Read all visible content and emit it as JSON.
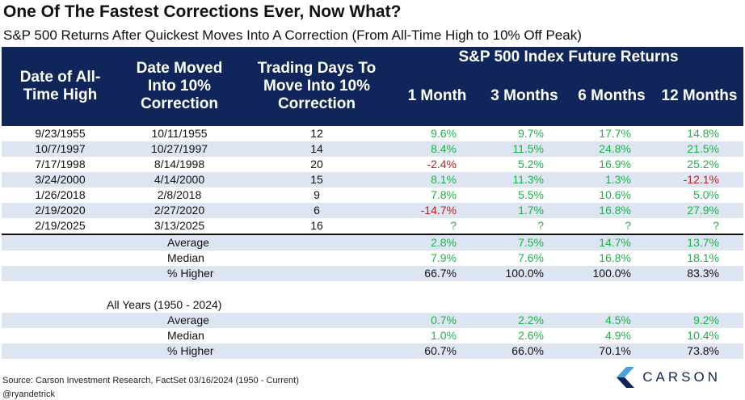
{
  "title": "One Of The Fastest Corrections Ever, Now What?",
  "subtitle": "S&P 500 Returns After Quickest Moves Into A Correction (From All-Time High to 10% Off Peak)",
  "header": {
    "col1": "Date of All-Time High",
    "col2": "Date Moved Into 10% Correction",
    "col3": "Trading Days To Move Into 10% Correction",
    "group": "S&P 500 Index Future Returns",
    "m1": "1 Month",
    "m3": "3 Months",
    "m6": "6 Months",
    "m12": "12 Months"
  },
  "rows": [
    {
      "ath": "9/23/1955",
      "corr": "10/11/1955",
      "days": "12",
      "m1": "9.6%",
      "m3": "9.7%",
      "m6": "17.7%",
      "m12": "14.8%"
    },
    {
      "ath": "10/7/1997",
      "corr": "10/27/1997",
      "days": "14",
      "m1": "8.4%",
      "m3": "11.5%",
      "m6": "24.8%",
      "m12": "21.5%"
    },
    {
      "ath": "7/17/1998",
      "corr": "8/14/1998",
      "days": "20",
      "m1": "-2.4%",
      "m3": "5.2%",
      "m6": "16.9%",
      "m12": "25.2%"
    },
    {
      "ath": "3/24/2000",
      "corr": "4/14/2000",
      "days": "15",
      "m1": "8.1%",
      "m3": "11.3%",
      "m6": "1.3%",
      "m12": "-12.1%"
    },
    {
      "ath": "1/26/2018",
      "corr": "2/8/2018",
      "days": "9",
      "m1": "7.8%",
      "m3": "5.5%",
      "m6": "10.6%",
      "m12": "5.0%"
    },
    {
      "ath": "2/19/2020",
      "corr": "2/27/2020",
      "days": "6",
      "m1": "-14.7%",
      "m3": "1.7%",
      "m6": "16.8%",
      "m12": "27.9%"
    },
    {
      "ath": "2/19/2025",
      "corr": "3/13/2025",
      "days": "16",
      "m1": "?",
      "m3": "?",
      "m6": "?",
      "m12": "?"
    }
  ],
  "summary": {
    "average": {
      "label": "Average",
      "m1": "2.8%",
      "m3": "7.5%",
      "m6": "14.7%",
      "m12": "13.7%"
    },
    "median": {
      "label": "Median",
      "m1": "7.9%",
      "m3": "7.6%",
      "m6": "16.8%",
      "m12": "18.1%"
    },
    "higher": {
      "label": "% Higher",
      "m1": "66.7%",
      "m3": "100.0%",
      "m6": "100.0%",
      "m12": "83.3%"
    }
  },
  "all_years": {
    "label": "All Years (1950 - 2024)",
    "average": {
      "label": "Average",
      "m1": "0.7%",
      "m3": "2.2%",
      "m6": "4.5%",
      "m12": "9.2%"
    },
    "median": {
      "label": "Median",
      "m1": "1.0%",
      "m3": "2.6%",
      "m6": "4.9%",
      "m12": "10.4%"
    },
    "higher": {
      "label": "% Higher",
      "m1": "60.7%",
      "m3": "66.0%",
      "m6": "70.1%",
      "m12": "73.8%"
    }
  },
  "footer": {
    "source": "Source: Carson Investment Research, FactSet 03/16/2024 (1950 - Current)",
    "handle": "@ryandetrick"
  },
  "logo": {
    "text": "CARSON",
    "colors": {
      "navy": "#10255a",
      "light": "#4aa3df"
    }
  },
  "colors": {
    "header_bg": "#10255a",
    "row_shade": "#dde5f2",
    "positive": "#1db24a",
    "negative": "#b8221f"
  }
}
